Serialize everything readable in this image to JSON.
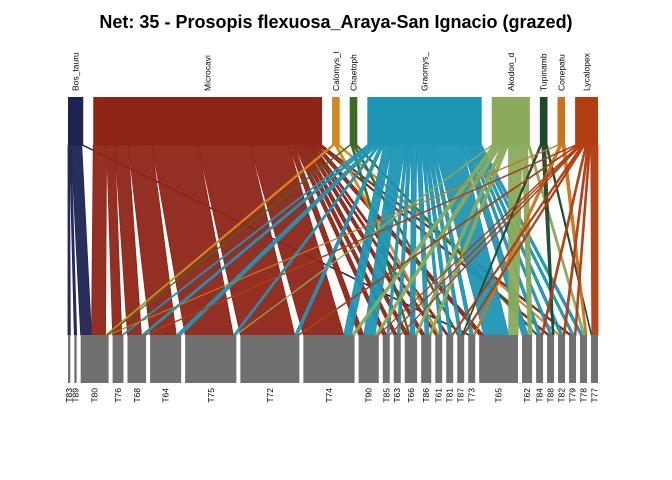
{
  "chart_data": {
    "type": "bipartite-web",
    "title": "Net: 35 - Prosopis flexuosa_Araya-San Ignacio (grazed)",
    "upper": [
      {
        "label": "Bos_tauru",
        "color": "#1f2353",
        "weight": 2
      },
      {
        "label": "Microcavi",
        "color": "#8e2417",
        "weight": 30
      },
      {
        "label": "Calomys_l",
        "color": "#d08a1b",
        "weight": 1
      },
      {
        "label": "Chaetoph",
        "color": "#3d6a26",
        "weight": 1
      },
      {
        "label": "Graomys_",
        "color": "#1d95b4",
        "weight": 15
      },
      {
        "label": "Akodon_d",
        "color": "#8aaa5c",
        "weight": 5
      },
      {
        "label": "Tupinamb",
        "color": "#1d4a2c",
        "weight": 1
      },
      {
        "label": "Conepatu",
        "color": "#c8761e",
        "weight": 1
      },
      {
        "label": "Lycalopex",
        "color": "#b23d10",
        "weight": 3
      }
    ],
    "lower": [
      {
        "label": "T83",
        "weight": 0.3
      },
      {
        "label": "T89",
        "weight": 0.3
      },
      {
        "label": "T80",
        "weight": 3.6
      },
      {
        "label": "T76",
        "weight": 1.4
      },
      {
        "label": "T68",
        "weight": 2.4
      },
      {
        "label": "T64",
        "weight": 4
      },
      {
        "label": "T75",
        "weight": 6.6
      },
      {
        "label": "T72",
        "weight": 7.6
      },
      {
        "label": "T74",
        "weight": 6.6
      },
      {
        "label": "T90",
        "weight": 2.6
      },
      {
        "label": "T85",
        "weight": 0.9
      },
      {
        "label": "T63",
        "weight": 0.9
      },
      {
        "label": "T66",
        "weight": 1.6
      },
      {
        "label": "T86",
        "weight": 1.3
      },
      {
        "label": "T61",
        "weight": 0.9
      },
      {
        "label": "T81",
        "weight": 0.9
      },
      {
        "label": "T87",
        "weight": 0.9
      },
      {
        "label": "T73",
        "weight": 0.9
      },
      {
        "label": "T65",
        "weight": 5
      },
      {
        "label": "T62",
        "weight": 1.3
      },
      {
        "label": "T84",
        "weight": 0.9
      },
      {
        "label": "T88",
        "weight": 0.9
      },
      {
        "label": "T82",
        "weight": 0.9
      },
      {
        "label": "T79",
        "weight": 0.9
      },
      {
        "label": "T78",
        "weight": 0.9
      },
      {
        "label": "T77",
        "weight": 0.9
      }
    ],
    "links": [
      [
        0,
        0,
        0.2
      ],
      [
        0,
        1,
        0.2
      ],
      [
        0,
        2,
        1.4
      ],
      [
        0,
        17,
        0.2
      ],
      [
        1,
        2,
        1.8
      ],
      [
        1,
        3,
        1.1
      ],
      [
        1,
        4,
        1.8
      ],
      [
        1,
        5,
        3.2
      ],
      [
        1,
        6,
        6.2
      ],
      [
        1,
        7,
        7
      ],
      [
        1,
        8,
        5.2
      ],
      [
        1,
        9,
        0.7
      ],
      [
        1,
        10,
        0.5
      ],
      [
        1,
        11,
        0.5
      ],
      [
        1,
        12,
        0.5
      ],
      [
        1,
        13,
        0.5
      ],
      [
        1,
        14,
        0.3
      ],
      [
        1,
        15,
        0.3
      ],
      [
        1,
        18,
        0.6
      ],
      [
        1,
        21,
        0.3
      ],
      [
        1,
        23,
        0.3
      ],
      [
        2,
        2,
        0.2
      ],
      [
        2,
        14,
        0.2
      ],
      [
        2,
        22,
        0.2
      ],
      [
        3,
        2,
        0.1
      ],
      [
        3,
        12,
        0.2
      ],
      [
        3,
        16,
        0.2
      ],
      [
        3,
        20,
        0.2
      ],
      [
        4,
        3,
        0.2
      ],
      [
        4,
        4,
        0.4
      ],
      [
        4,
        5,
        0.6
      ],
      [
        4,
        6,
        0.3
      ],
      [
        4,
        7,
        0.4
      ],
      [
        4,
        8,
        1
      ],
      [
        4,
        9,
        1.5
      ],
      [
        4,
        10,
        0.3
      ],
      [
        4,
        11,
        0.4
      ],
      [
        4,
        12,
        0.6
      ],
      [
        4,
        13,
        0.5
      ],
      [
        4,
        14,
        0.3
      ],
      [
        4,
        15,
        0.4
      ],
      [
        4,
        16,
        0.4
      ],
      [
        4,
        17,
        0.4
      ],
      [
        4,
        18,
        3.2
      ],
      [
        4,
        19,
        0.8
      ],
      [
        4,
        20,
        0.3
      ],
      [
        4,
        21,
        0.3
      ],
      [
        4,
        22,
        0.3
      ],
      [
        4,
        23,
        0.3
      ],
      [
        4,
        24,
        0.3
      ],
      [
        5,
        6,
        0.1
      ],
      [
        5,
        8,
        0.4
      ],
      [
        5,
        9,
        0.4
      ],
      [
        5,
        12,
        0.3
      ],
      [
        5,
        13,
        0.3
      ],
      [
        5,
        18,
        1.2
      ],
      [
        5,
        19,
        0.5
      ],
      [
        5,
        24,
        0.2
      ],
      [
        6,
        16,
        0.1
      ],
      [
        6,
        21,
        0.2
      ],
      [
        6,
        25,
        0.1
      ],
      [
        7,
        2,
        0.1
      ],
      [
        7,
        17,
        0.2
      ],
      [
        7,
        24,
        0.2
      ],
      [
        8,
        4,
        0.2
      ],
      [
        8,
        7,
        0.2
      ],
      [
        8,
        9,
        0.1
      ],
      [
        8,
        10,
        0.1
      ],
      [
        8,
        11,
        0.1
      ],
      [
        8,
        15,
        0.2
      ],
      [
        8,
        16,
        0.2
      ],
      [
        8,
        20,
        0.2
      ],
      [
        8,
        22,
        0.2
      ],
      [
        8,
        23,
        0.2
      ],
      [
        8,
        25,
        0.8
      ]
    ]
  }
}
